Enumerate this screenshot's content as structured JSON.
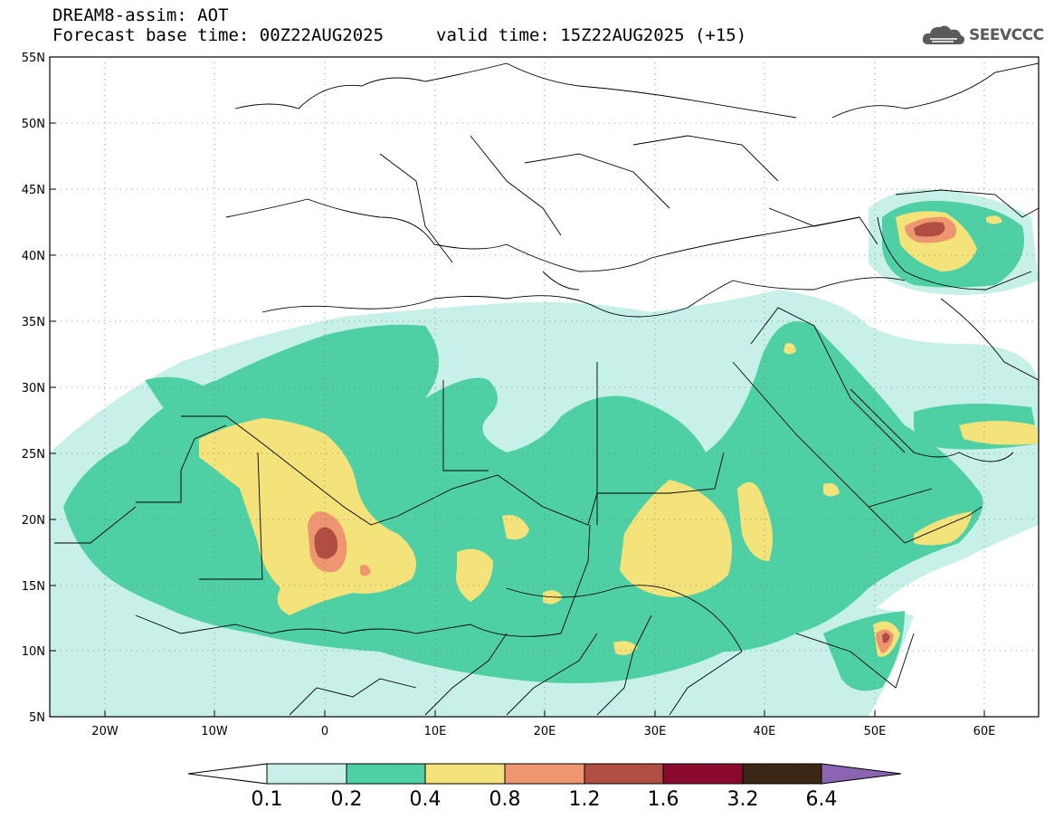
{
  "header": {
    "title": "DREAM8-assim: AOT",
    "base_time": "Forecast base time: 00Z22AUG2025",
    "valid_time": "valid time: 15Z22AUG2025 (+15)"
  },
  "logo": {
    "text": "SEEVCCC",
    "icon": "cloud-icon"
  },
  "map": {
    "lat_labels": [
      "55N",
      "50N",
      "45N",
      "40N",
      "35N",
      "30N",
      "25N",
      "20N",
      "15N",
      "10N",
      "5N"
    ],
    "lon_labels": [
      "20W",
      "10W",
      "0",
      "10E",
      "20E",
      "30E",
      "40E",
      "50E",
      "60E"
    ],
    "variable": "AOT"
  },
  "colorbar": {
    "levels": [
      "0.1",
      "0.2",
      "0.4",
      "0.8",
      "1.2",
      "1.6",
      "3.2",
      "6.4"
    ],
    "colors": [
      "#ffffff",
      "#c6f0e8",
      "#4fd0a4",
      "#f4e37a",
      "#ee9670",
      "#b04e42",
      "#8b0a2b",
      "#3c2616",
      "#8c64b4"
    ]
  }
}
